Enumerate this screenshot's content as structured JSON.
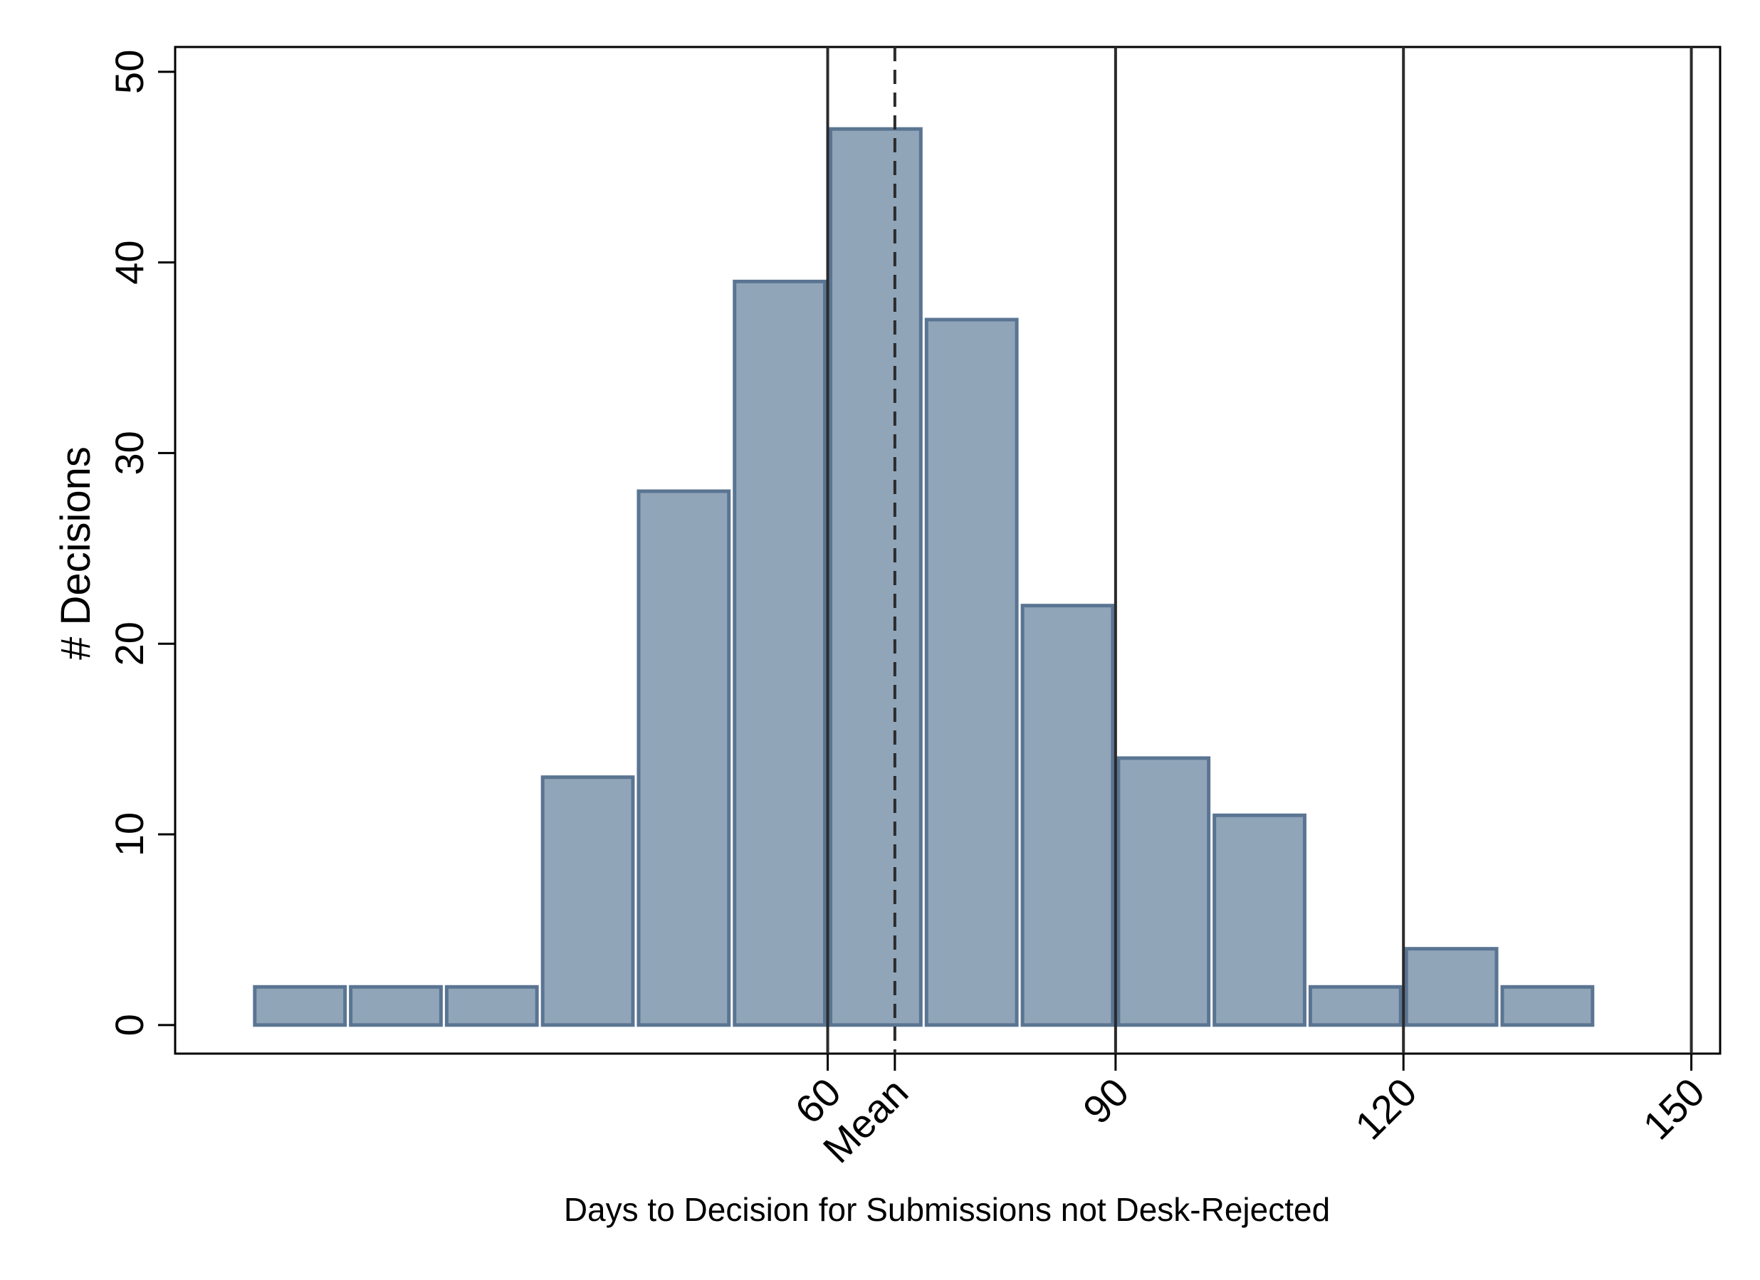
{
  "chart_data": {
    "type": "bar",
    "title": "",
    "xlabel": "Days to Decision for Submissions not Desk-Rejected",
    "ylabel": "# Decisions",
    "xlim": [
      -8,
      153
    ],
    "ylim": [
      -1.5,
      51.3
    ],
    "grid": false,
    "bin_width": 10,
    "bins": [
      {
        "start": 0,
        "end": 10,
        "count": 2
      },
      {
        "start": 10,
        "end": 20,
        "count": 2
      },
      {
        "start": 20,
        "end": 30,
        "count": 2
      },
      {
        "start": 30,
        "end": 40,
        "count": 13
      },
      {
        "start": 40,
        "end": 50,
        "count": 28
      },
      {
        "start": 50,
        "end": 60,
        "count": 39
      },
      {
        "start": 60,
        "end": 70,
        "count": 47
      },
      {
        "start": 70,
        "end": 80,
        "count": 37
      },
      {
        "start": 80,
        "end": 90,
        "count": 22
      },
      {
        "start": 90,
        "end": 100,
        "count": 14
      },
      {
        "start": 100,
        "end": 110,
        "count": 11
      },
      {
        "start": 110,
        "end": 120,
        "count": 2
      },
      {
        "start": 120,
        "end": 130,
        "count": 4
      },
      {
        "start": 130,
        "end": 140,
        "count": 2
      }
    ],
    "y_ticks": [
      {
        "value": 0,
        "label": "0"
      },
      {
        "value": 10,
        "label": "10"
      },
      {
        "value": 20,
        "label": "20"
      },
      {
        "value": 30,
        "label": "30"
      },
      {
        "value": 40,
        "label": "40"
      },
      {
        "value": 50,
        "label": "50"
      }
    ],
    "x_ticks": [
      {
        "value": 60,
        "label": "60"
      },
      {
        "value": 67,
        "label": "Mean"
      },
      {
        "value": 90,
        "label": "90"
      },
      {
        "value": 120,
        "label": "120"
      },
      {
        "value": 150,
        "label": "150"
      }
    ],
    "reference_lines": [
      {
        "x": 60,
        "style": "solid"
      },
      {
        "x": 67,
        "style": "dashed"
      },
      {
        "x": 90,
        "style": "solid"
      },
      {
        "x": 120,
        "style": "solid"
      },
      {
        "x": 150,
        "style": "solid"
      }
    ],
    "colors": {
      "bar_fill": "#91a5b9",
      "bar_stroke": "#5a7592",
      "ref_line": "#2b2b2b",
      "axis": "#000000"
    }
  }
}
